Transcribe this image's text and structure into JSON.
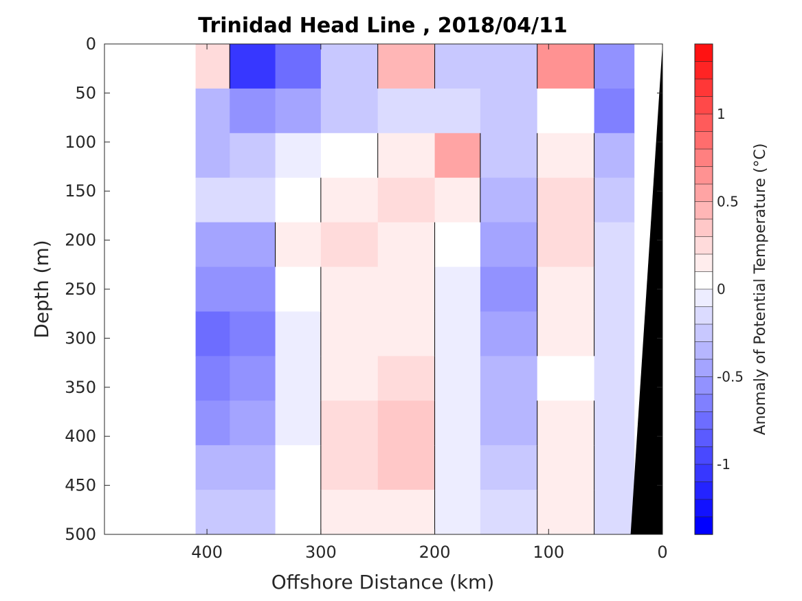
{
  "chart_data": {
    "type": "heatmap",
    "title": "Trinidad Head Line , 2018/04/11",
    "xlabel": "Offshore Distance (km)",
    "ylabel": "Depth (m)",
    "colorbar_label": "Anomaly of Potential Temperature (°C)",
    "xlim": [
      490,
      0
    ],
    "ylim": [
      500,
      0
    ],
    "y_reversed": true,
    "x_reversed": true,
    "x_ticks": [
      400,
      300,
      200,
      100,
      0
    ],
    "x_tick_labels": [
      "400",
      "300",
      "200",
      "100",
      "0"
    ],
    "y_ticks": [
      0,
      50,
      100,
      150,
      200,
      250,
      300,
      350,
      400,
      450,
      500
    ],
    "y_tick_labels": [
      "0",
      "50",
      "100",
      "150",
      "200",
      "250",
      "300",
      "350",
      "400",
      "450",
      "500"
    ],
    "colorbar_range": [
      -1.4,
      1.4
    ],
    "colorbar_step": 0.1,
    "colorbar_ticks": [
      1,
      0.5,
      0,
      -0.5,
      -1
    ],
    "colorbar_tick_labels": [
      "1",
      "0.5",
      "0",
      "-0.5",
      "-1"
    ],
    "data_x_extent": [
      410,
      0
    ],
    "bathymetry_color": "#000000",
    "anomaly_bands": [
      {
        "x_from": 410,
        "x_to": 380,
        "values": [
          0.2,
          -0.4,
          -0.4,
          -0.2,
          -0.5,
          -0.6,
          -0.8,
          -0.7,
          -0.6,
          -0.4,
          -0.3
        ]
      },
      {
        "x_from": 380,
        "x_to": 340,
        "values": [
          -1.1,
          -0.6,
          -0.3,
          -0.2,
          -0.5,
          -0.6,
          -0.7,
          -0.6,
          -0.5,
          -0.4,
          -0.3
        ]
      },
      {
        "x_from": 340,
        "x_to": 300,
        "values": [
          -0.8,
          -0.5,
          -0.1,
          0.0,
          0.1,
          0.0,
          -0.1,
          -0.1,
          -0.1,
          0.0,
          0.0
        ]
      },
      {
        "x_from": 300,
        "x_to": 250,
        "values": [
          -0.3,
          -0.3,
          0.0,
          0.15,
          0.2,
          0.1,
          0.1,
          0.15,
          0.2,
          0.2,
          0.1
        ]
      },
      {
        "x_from": 250,
        "x_to": 200,
        "values": [
          0.4,
          -0.2,
          0.1,
          0.2,
          0.15,
          0.1,
          0.1,
          0.2,
          0.25,
          0.25,
          0.1
        ]
      },
      {
        "x_from": 200,
        "x_to": 160,
        "values": [
          -0.3,
          -0.2,
          0.5,
          0.1,
          0.0,
          -0.1,
          -0.1,
          -0.1,
          -0.1,
          -0.1,
          -0.1
        ]
      },
      {
        "x_from": 160,
        "x_to": 110,
        "values": [
          -0.3,
          -0.3,
          -0.3,
          -0.4,
          -0.5,
          -0.6,
          -0.5,
          -0.4,
          -0.4,
          -0.3,
          -0.2
        ]
      },
      {
        "x_from": 110,
        "x_to": 60,
        "values": [
          0.6,
          0.0,
          0.1,
          0.2,
          0.2,
          0.15,
          0.05,
          0.0,
          0.1,
          0.1,
          0.15
        ]
      },
      {
        "x_from": 60,
        "x_to": 25,
        "values": [
          -0.6,
          -0.7,
          -0.4,
          -0.3,
          -0.2,
          -0.2,
          -0.2,
          -0.2,
          -0.2,
          -0.2,
          -0.2
        ]
      }
    ]
  }
}
